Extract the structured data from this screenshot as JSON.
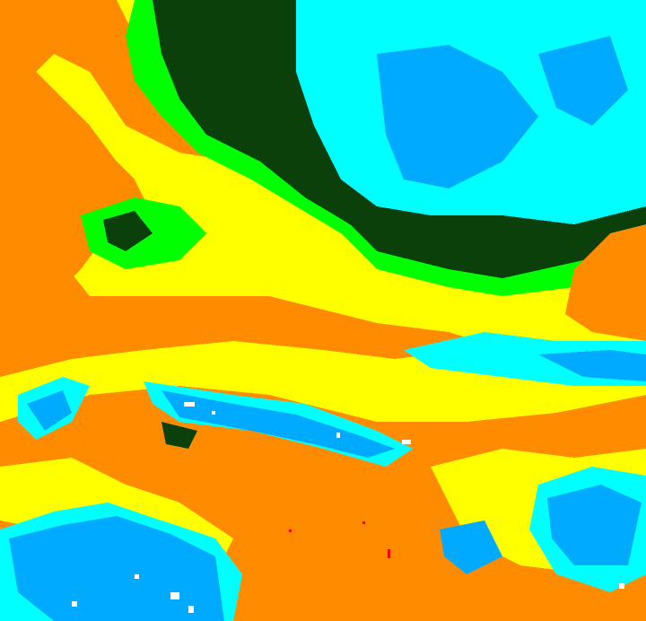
{
  "map": {
    "type": "classified-raster",
    "palette": {
      "orange": "#ff8c00",
      "yellow": "#ffff00",
      "green": "#00ff00",
      "dark_green": "#0b400b",
      "cyan": "#00ffff",
      "blue": "#00aaff",
      "white": "#ffffff"
    }
  }
}
